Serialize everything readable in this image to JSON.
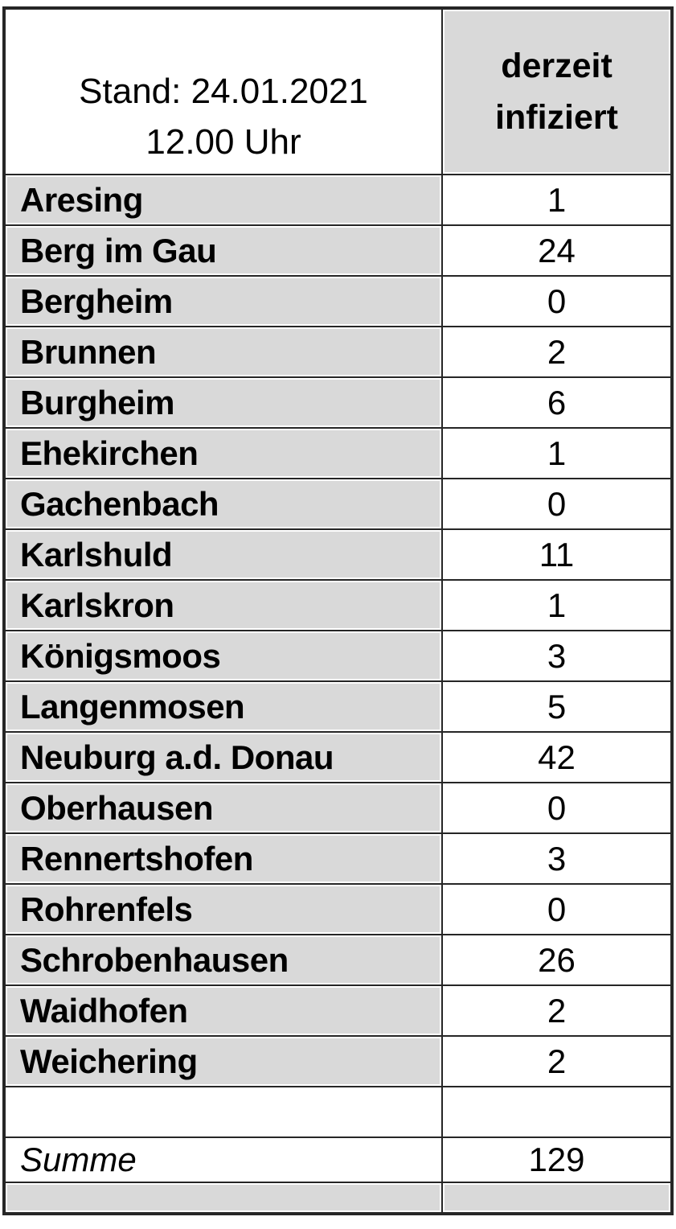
{
  "table": {
    "stand_line1": "Stand: 24.01.2021",
    "stand_line2": "12.00 Uhr",
    "value_header_line1": "derzeit",
    "value_header_line2": "infiziert",
    "rows": [
      {
        "name": "Aresing",
        "value": "1"
      },
      {
        "name": "Berg im Gau",
        "value": "24"
      },
      {
        "name": "Bergheim",
        "value": "0"
      },
      {
        "name": "Brunnen",
        "value": "2"
      },
      {
        "name": "Burgheim",
        "value": "6"
      },
      {
        "name": "Ehekirchen",
        "value": "1"
      },
      {
        "name": "Gachenbach",
        "value": "0"
      },
      {
        "name": "Karlshuld",
        "value": "11"
      },
      {
        "name": "Karlskron",
        "value": "1"
      },
      {
        "name": "Königsmoos",
        "value": "3"
      },
      {
        "name": "Langenmosen",
        "value": "5"
      },
      {
        "name": "Neuburg a.d. Donau",
        "value": "42"
      },
      {
        "name": "Oberhausen",
        "value": "0"
      },
      {
        "name": "Rennertshofen",
        "value": "3"
      },
      {
        "name": "Rohrenfels",
        "value": "0"
      },
      {
        "name": "Schrobenhausen",
        "value": "26"
      },
      {
        "name": "Waidhofen",
        "value": "2"
      },
      {
        "name": "Weichering",
        "value": "2"
      }
    ],
    "summary_label": "Summe",
    "summary_value": "129"
  },
  "colors": {
    "cell_gray": "#d9d9d9",
    "border": "#262626",
    "text": "#000000",
    "background": "#ffffff"
  },
  "chart_data": {
    "type": "table",
    "title": "derzeit infiziert — Stand: 24.01.2021 12.00 Uhr",
    "columns": [
      "Stand: 24.01.2021 12.00 Uhr",
      "derzeit infiziert"
    ],
    "rows": [
      [
        "Aresing",
        1
      ],
      [
        "Berg im Gau",
        24
      ],
      [
        "Bergheim",
        0
      ],
      [
        "Brunnen",
        2
      ],
      [
        "Burgheim",
        6
      ],
      [
        "Ehekirchen",
        1
      ],
      [
        "Gachenbach",
        0
      ],
      [
        "Karlshuld",
        11
      ],
      [
        "Karlskron",
        1
      ],
      [
        "Königsmoos",
        3
      ],
      [
        "Langenmosen",
        5
      ],
      [
        "Neuburg a.d. Donau",
        42
      ],
      [
        "Oberhausen",
        0
      ],
      [
        "Rennertshofen",
        3
      ],
      [
        "Rohrenfels",
        0
      ],
      [
        "Schrobenhausen",
        26
      ],
      [
        "Waidhofen",
        2
      ],
      [
        "Weichering",
        2
      ]
    ],
    "total_row": [
      "Summe",
      129
    ]
  }
}
